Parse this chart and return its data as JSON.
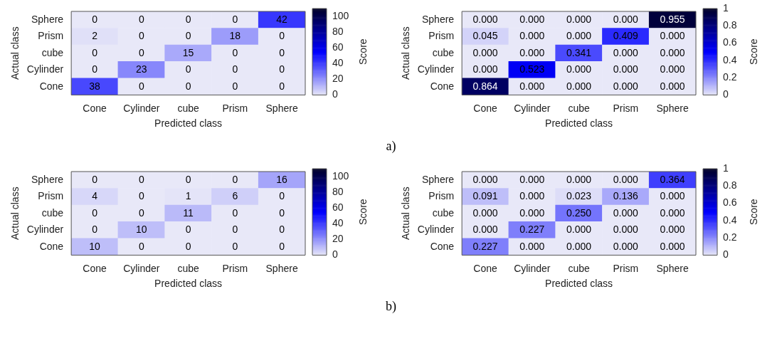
{
  "chart_data": [
    {
      "type": "heatmap",
      "categories": [
        "Cone",
        "Cylinder",
        "cube",
        "Prism",
        "Sphere"
      ],
      "y_categories": [
        "Sphere",
        "Prism",
        "cube",
        "Cylinder",
        "Cone"
      ],
      "cells": [
        [
          0,
          0,
          0,
          0,
          42
        ],
        [
          2,
          0,
          0,
          18,
          0
        ],
        [
          0,
          0,
          15,
          0,
          0
        ],
        [
          0,
          23,
          0,
          0,
          0
        ],
        [
          38,
          0,
          0,
          0,
          0
        ]
      ],
      "data_labels": true,
      "xlabel": "Predicted class",
      "ylabel": "Actual class",
      "clabel": "Score",
      "clim": [
        0,
        110
      ],
      "cticks": [
        0,
        20,
        40,
        60,
        80,
        100
      ],
      "annotations": [
        "a)"
      ]
    },
    {
      "type": "heatmap",
      "categories": [
        "Cone",
        "Cylinder",
        "cube",
        "Prism",
        "Sphere"
      ],
      "y_categories": [
        "Sphere",
        "Prism",
        "cube",
        "Cylinder",
        "Cone"
      ],
      "cells": [
        [
          0,
          0,
          0,
          0,
          0.955
        ],
        [
          0.045,
          0,
          0,
          0.409,
          0
        ],
        [
          0,
          0,
          0.341,
          0,
          0
        ],
        [
          0,
          0.523,
          0,
          0,
          0
        ],
        [
          0.864,
          0,
          0,
          0,
          0
        ]
      ],
      "cell_labels": [
        [
          "0.000",
          "0.000",
          "0.000",
          "0.000",
          "0.955"
        ],
        [
          "0.045",
          "0.000",
          "0.000",
          "0.409",
          "0.000"
        ],
        [
          "0.000",
          "0.000",
          "0.341",
          "0.000",
          "0.000"
        ],
        [
          "0.000",
          "0.523",
          "0.000",
          "0.000",
          "0.000"
        ],
        [
          "0.864",
          "0.000",
          "0.000",
          "0.000",
          "0.000"
        ]
      ],
      "xlabel": "Predicted class",
      "ylabel": "Actual class",
      "clabel": "Score",
      "clim": [
        0,
        1
      ],
      "cticks": [
        0,
        0.2,
        0.4,
        0.6,
        0.8,
        1
      ]
    },
    {
      "type": "heatmap",
      "categories": [
        "Cone",
        "Cylinder",
        "cube",
        "Prism",
        "Sphere"
      ],
      "y_categories": [
        "Sphere",
        "Prism",
        "cube",
        "Cylinder",
        "Cone"
      ],
      "cells": [
        [
          0,
          0,
          0,
          0,
          16
        ],
        [
          4,
          0,
          1,
          6,
          0
        ],
        [
          0,
          0,
          11,
          0,
          0
        ],
        [
          0,
          10,
          0,
          0,
          0
        ],
        [
          10,
          0,
          0,
          0,
          0
        ]
      ],
      "data_labels": true,
      "xlabel": "Predicted class",
      "ylabel": "Actual class",
      "clabel": "Score",
      "clim": [
        0,
        110
      ],
      "cticks": [
        0,
        20,
        40,
        60,
        80,
        100
      ],
      "annotations": [
        "b)"
      ]
    },
    {
      "type": "heatmap",
      "categories": [
        "Cone",
        "Cylinder",
        "cube",
        "Prism",
        "Sphere"
      ],
      "y_categories": [
        "Sphere",
        "Prism",
        "cube",
        "Cylinder",
        "Cone"
      ],
      "cells": [
        [
          0,
          0,
          0,
          0,
          0.364
        ],
        [
          0.091,
          0,
          0.023,
          0.136,
          0
        ],
        [
          0,
          0,
          0.25,
          0,
          0
        ],
        [
          0,
          0.227,
          0,
          0,
          0
        ],
        [
          0.227,
          0,
          0,
          0,
          0
        ]
      ],
      "cell_labels": [
        [
          "0.000",
          "0.000",
          "0.000",
          "0.000",
          "0.364"
        ],
        [
          "0.091",
          "0.000",
          "0.023",
          "0.136",
          "0.000"
        ],
        [
          "0.000",
          "0.000",
          "0.250",
          "0.000",
          "0.000"
        ],
        [
          "0.000",
          "0.227",
          "0.000",
          "0.000",
          "0.000"
        ],
        [
          "0.227",
          "0.000",
          "0.000",
          "0.000",
          "0.000"
        ]
      ],
      "xlabel": "Predicted class",
      "ylabel": "Actual class",
      "clabel": "Score",
      "clim": [
        0,
        1
      ],
      "cticks": [
        0,
        0.2,
        0.4,
        0.6,
        0.8,
        1
      ]
    }
  ]
}
